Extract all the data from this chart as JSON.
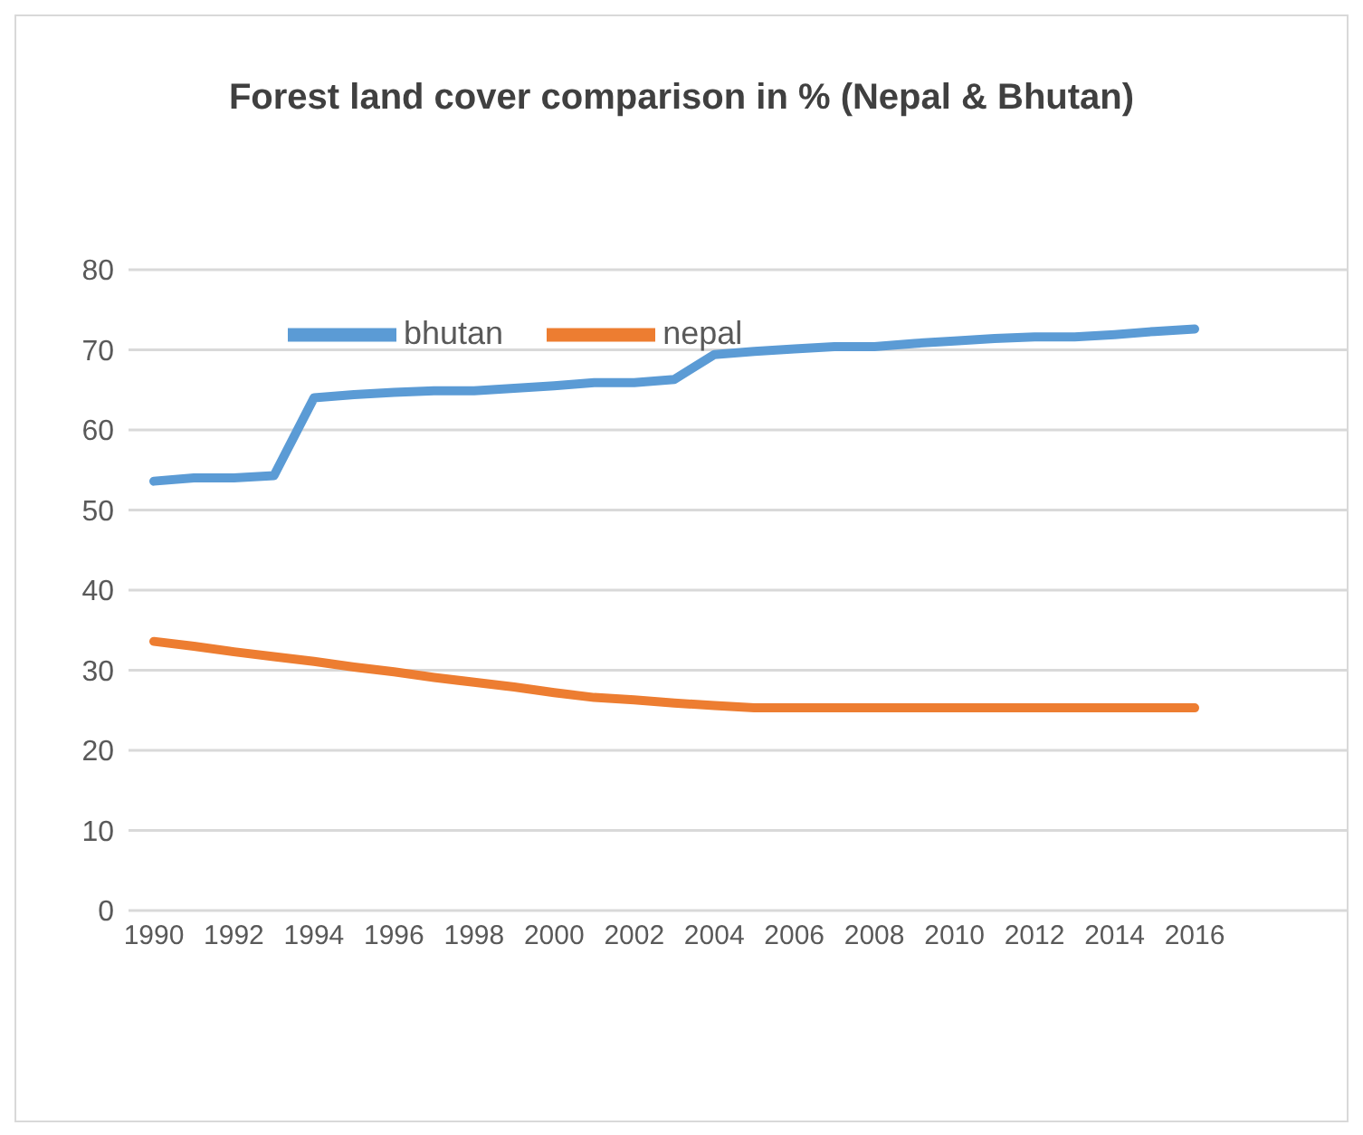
{
  "chart_data": {
    "type": "line",
    "title": "Forest land cover comparison in % (Nepal & Bhutan)",
    "categories": [
      "1990",
      null,
      "1992",
      null,
      "1994",
      null,
      "1996",
      null,
      "1998",
      null,
      "2000",
      null,
      "2002",
      null,
      "2004",
      null,
      "2006",
      null,
      "2008",
      null,
      "2010",
      null,
      "2012",
      null,
      "2014",
      null,
      "2016"
    ],
    "series": [
      {
        "name": "bhutan",
        "color": "#5b9bd5",
        "values": [
          53.6,
          54.0,
          54.0,
          54.3,
          64.0,
          64.4,
          64.7,
          64.9,
          64.9,
          65.2,
          65.5,
          65.9,
          65.9,
          66.3,
          69.4,
          69.8,
          70.1,
          70.4,
          70.4,
          70.8,
          71.1,
          71.4,
          71.6,
          71.6,
          71.9,
          72.3,
          72.6
        ]
      },
      {
        "name": "nepal",
        "color": "#ed7d31",
        "values": [
          33.6,
          33.0,
          32.3,
          31.7,
          31.1,
          30.4,
          29.8,
          29.1,
          28.5,
          27.9,
          27.2,
          26.6,
          26.3,
          25.9,
          25.6,
          25.3,
          25.3,
          25.3,
          25.3,
          25.3,
          25.3,
          25.3,
          25.3,
          25.3,
          25.3,
          25.3,
          25.3
        ]
      }
    ],
    "ylim": [
      0,
      80
    ],
    "yticks": [
      0,
      10,
      20,
      30,
      40,
      50,
      60,
      70,
      80
    ],
    "grid": "y",
    "legend": "top left",
    "marker": "none",
    "line_style": "solid"
  }
}
